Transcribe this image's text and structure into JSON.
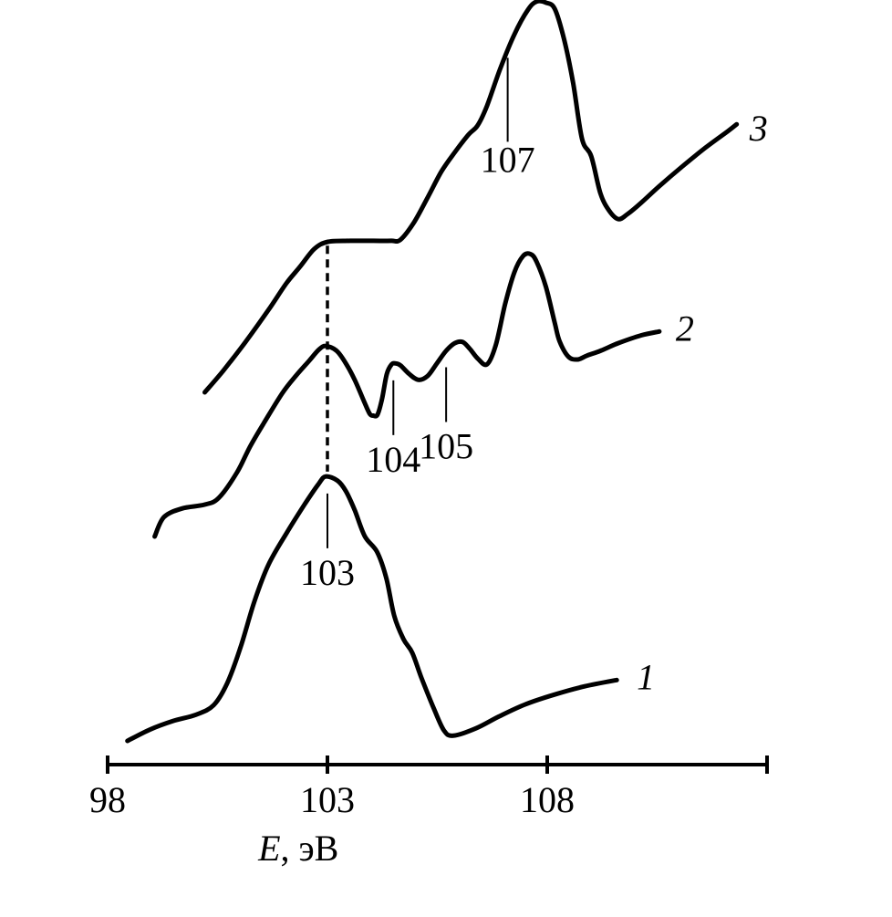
{
  "chart_data": {
    "type": "line",
    "xlabel": {
      "symbol": "E",
      "unit": ", эВ"
    },
    "xlim": [
      98,
      113
    ],
    "xticks": [
      98,
      103,
      108,
      113
    ],
    "xtick_labels": [
      "98",
      "103",
      "108"
    ],
    "grid": false,
    "series": [
      {
        "name": "1",
        "points": [
          [
            98.45,
            0.0
          ],
          [
            98.97,
            0.11
          ],
          [
            99.49,
            0.19
          ],
          [
            100.01,
            0.25
          ],
          [
            100.41,
            0.34
          ],
          [
            100.72,
            0.55
          ],
          [
            101.03,
            0.9
          ],
          [
            101.34,
            1.33
          ],
          [
            101.66,
            1.68
          ],
          [
            102.07,
            1.98
          ],
          [
            102.49,
            2.26
          ],
          [
            102.8,
            2.45
          ],
          [
            102.96,
            2.52
          ],
          [
            103.23,
            2.48
          ],
          [
            103.42,
            2.38
          ],
          [
            103.62,
            2.2
          ],
          [
            103.85,
            1.95
          ],
          [
            104.13,
            1.8
          ],
          [
            104.34,
            1.55
          ],
          [
            104.52,
            1.19
          ],
          [
            104.73,
            0.97
          ],
          [
            104.93,
            0.84
          ],
          [
            105.14,
            0.6
          ],
          [
            105.42,
            0.31
          ],
          [
            105.65,
            0.1
          ],
          [
            105.86,
            0.05
          ],
          [
            106.38,
            0.12
          ],
          [
            106.89,
            0.23
          ],
          [
            107.51,
            0.35
          ],
          [
            108.23,
            0.45
          ],
          [
            108.85,
            0.52
          ],
          [
            109.58,
            0.58
          ]
        ]
      },
      {
        "name": "2",
        "points": [
          [
            99.07,
            0.0
          ],
          [
            99.28,
            0.2
          ],
          [
            99.69,
            0.29
          ],
          [
            100.21,
            0.33
          ],
          [
            100.53,
            0.4
          ],
          [
            100.94,
            0.66
          ],
          [
            101.24,
            0.93
          ],
          [
            101.55,
            1.17
          ],
          [
            101.97,
            1.48
          ],
          [
            102.28,
            1.66
          ],
          [
            102.59,
            1.82
          ],
          [
            102.8,
            1.93
          ],
          [
            102.96,
            1.97
          ],
          [
            103.21,
            1.92
          ],
          [
            103.42,
            1.79
          ],
          [
            103.62,
            1.62
          ],
          [
            103.83,
            1.4
          ],
          [
            103.96,
            1.27
          ],
          [
            104.04,
            1.25
          ],
          [
            104.14,
            1.26
          ],
          [
            104.24,
            1.42
          ],
          [
            104.35,
            1.68
          ],
          [
            104.46,
            1.78
          ],
          [
            104.55,
            1.79
          ],
          [
            104.66,
            1.77
          ],
          [
            104.86,
            1.68
          ],
          [
            105.07,
            1.62
          ],
          [
            105.28,
            1.66
          ],
          [
            105.49,
            1.79
          ],
          [
            105.7,
            1.92
          ],
          [
            105.9,
            2.0
          ],
          [
            106.08,
            2.01
          ],
          [
            106.24,
            1.94
          ],
          [
            106.42,
            1.84
          ],
          [
            106.63,
            1.78
          ],
          [
            106.83,
            1.98
          ],
          [
            107.04,
            2.4
          ],
          [
            107.25,
            2.73
          ],
          [
            107.45,
            2.9
          ],
          [
            107.62,
            2.92
          ],
          [
            107.76,
            2.84
          ],
          [
            107.97,
            2.58
          ],
          [
            108.17,
            2.21
          ],
          [
            108.28,
            2.02
          ],
          [
            108.48,
            1.86
          ],
          [
            108.69,
            1.83
          ],
          [
            108.9,
            1.87
          ],
          [
            109.21,
            1.92
          ],
          [
            109.62,
            2.0
          ],
          [
            110.14,
            2.08
          ],
          [
            110.55,
            2.12
          ]
        ]
      },
      {
        "name": "3",
        "points": [
          [
            100.21,
            0.0
          ],
          [
            100.63,
            0.21
          ],
          [
            101.14,
            0.49
          ],
          [
            101.66,
            0.8
          ],
          [
            102.07,
            1.06
          ],
          [
            102.38,
            1.22
          ],
          [
            102.7,
            1.39
          ],
          [
            103.01,
            1.46
          ],
          [
            103.52,
            1.47
          ],
          [
            104.04,
            1.47
          ],
          [
            104.45,
            1.47
          ],
          [
            104.66,
            1.48
          ],
          [
            104.97,
            1.65
          ],
          [
            105.28,
            1.89
          ],
          [
            105.59,
            2.14
          ],
          [
            105.9,
            2.33
          ],
          [
            106.21,
            2.5
          ],
          [
            106.42,
            2.59
          ],
          [
            106.63,
            2.78
          ],
          [
            106.94,
            3.15
          ],
          [
            107.25,
            3.47
          ],
          [
            107.56,
            3.71
          ],
          [
            107.76,
            3.79
          ],
          [
            107.97,
            3.78
          ],
          [
            108.17,
            3.72
          ],
          [
            108.38,
            3.43
          ],
          [
            108.59,
            3.0
          ],
          [
            108.79,
            2.46
          ],
          [
            109.0,
            2.29
          ],
          [
            109.21,
            1.93
          ],
          [
            109.41,
            1.76
          ],
          [
            109.62,
            1.68
          ],
          [
            109.83,
            1.73
          ],
          [
            110.14,
            1.84
          ],
          [
            110.55,
            2.0
          ],
          [
            111.07,
            2.19
          ],
          [
            111.59,
            2.37
          ],
          [
            112.1,
            2.53
          ],
          [
            112.31,
            2.6
          ]
        ]
      }
    ],
    "peak_labels": [
      {
        "series": "1",
        "x": 103,
        "text": "103"
      },
      {
        "series": "2",
        "x": 104.5,
        "text": "104"
      },
      {
        "series": "2",
        "x": 105.7,
        "text": "105"
      },
      {
        "series": "3",
        "x": 107.1,
        "text": "107"
      }
    ]
  }
}
